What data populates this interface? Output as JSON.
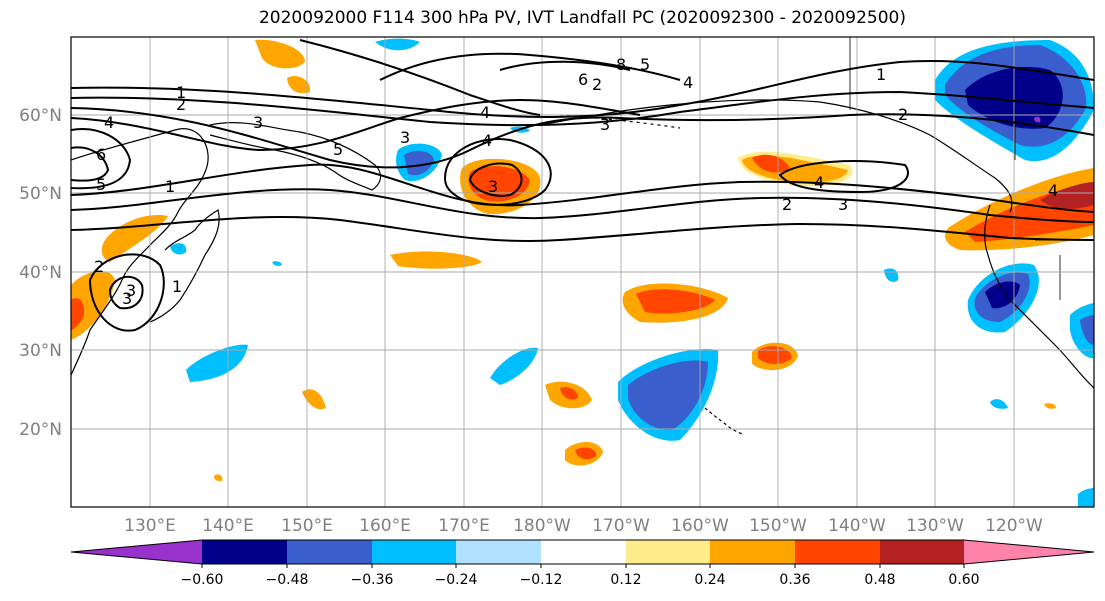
{
  "title": "2020092000 F114 300 hPa PV, IVT Landfall PC (2020092300 - 2020092500)",
  "map": {
    "lat_labels": [
      "60°N",
      "50°N",
      "40°N",
      "30°N",
      "20°N"
    ],
    "lon_labels": [
      "130°E",
      "140°E",
      "150°E",
      "160°E",
      "170°E",
      "180°W",
      "170°W",
      "160°W",
      "150°W",
      "140°W",
      "130°W",
      "120°W"
    ],
    "contour_labels": [
      "1",
      "2",
      "3",
      "4",
      "5",
      "6",
      "8",
      "1",
      "2",
      "3",
      "4",
      "5",
      "6",
      "3",
      "4",
      "1",
      "2",
      "3",
      "4",
      "2",
      "3",
      "4",
      "4",
      "2",
      "3",
      "1",
      "5",
      "3"
    ]
  },
  "colorbar": {
    "colors": [
      "#9932CC",
      "#00008B",
      "#3A5FCD",
      "#00BFFF",
      "#B0E2FF",
      "#FFFFFF",
      "#FFEC8B",
      "#FFA500",
      "#FF4500",
      "#B22222",
      "#FF82AB"
    ],
    "tick_labels": [
      "−0.60",
      "−0.48",
      "−0.36",
      "−0.24",
      "−0.12",
      "0.12",
      "0.24",
      "0.36",
      "0.48",
      "0.60"
    ]
  }
}
